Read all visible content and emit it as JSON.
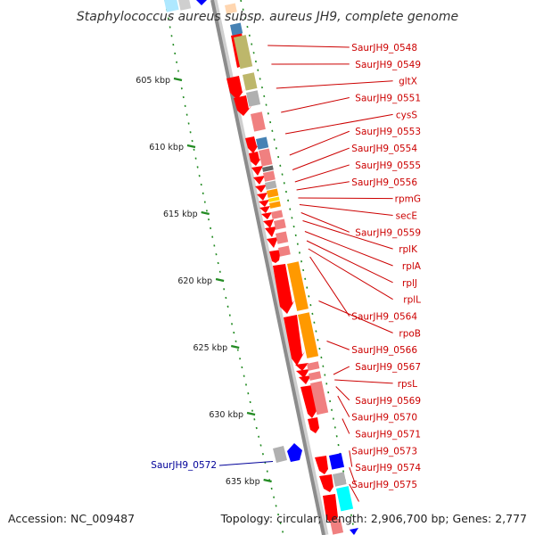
{
  "title": "Staphylococcus aureus subsp. aureus JH9, complete genome",
  "accession_text": "Accession: NC_009487",
  "summary_text": "Topology: circular; Length: 2,906,700 bp; Genes: 2,777",
  "ticks": [
    {
      "label": "605 kbp",
      "pos": 605
    },
    {
      "label": "610 kbp",
      "pos": 610
    },
    {
      "label": "615 kbp",
      "pos": 615
    },
    {
      "label": "620 kbp",
      "pos": 620
    },
    {
      "label": "625 kbp",
      "pos": 625
    },
    {
      "label": "630 kbp",
      "pos": 630
    },
    {
      "label": "635 kbp",
      "pos": 635
    }
  ],
  "colors": {
    "forward_label": "#cc0000",
    "reverse_label": "#000099",
    "cds_red": "#ff0000",
    "pink": "#f08080",
    "orange": "#ff9900",
    "olive": "#bdb76b",
    "steel": "#4682b4",
    "grey": "#b0b0b0",
    "blue": "#0000ff",
    "cyan": "#00ffff",
    "backbone": "#8c8c8c",
    "tick_green": "#228b22"
  },
  "labels": [
    {
      "text": "SaurJH9_0548",
      "strand": "forward",
      "pos": 602.4
    },
    {
      "text": "SaurJH9_0549",
      "strand": "forward",
      "pos": 603.8
    },
    {
      "text": "gltX",
      "strand": "forward",
      "pos": 605.6
    },
    {
      "text": "SaurJH9_0551",
      "strand": "forward",
      "pos": 607.4
    },
    {
      "text": "cysS",
      "strand": "forward",
      "pos": 609.0
    },
    {
      "text": "SaurJH9_0553",
      "strand": "forward",
      "pos": 610.6
    },
    {
      "text": "SaurJH9_0554",
      "strand": "forward",
      "pos": 611.7
    },
    {
      "text": "SaurJH9_0555",
      "strand": "forward",
      "pos": 612.6
    },
    {
      "text": "SaurJH9_0556",
      "strand": "forward",
      "pos": 613.2
    },
    {
      "text": "rpmG",
      "strand": "forward",
      "pos": 613.8
    },
    {
      "text": "secE",
      "strand": "forward",
      "pos": 614.3
    },
    {
      "text": "SaurJH9_0559",
      "strand": "forward",
      "pos": 614.9
    },
    {
      "text": "rplK",
      "strand": "forward",
      "pos": 615.5
    },
    {
      "text": "rplA",
      "strand": "forward",
      "pos": 616.3
    },
    {
      "text": "rplJ",
      "strand": "forward",
      "pos": 617.0
    },
    {
      "text": "rplL",
      "strand": "forward",
      "pos": 617.6
    },
    {
      "text": "SaurJH9_0564",
      "strand": "forward",
      "pos": 618.2
    },
    {
      "text": "rpoB",
      "strand": "forward",
      "pos": 621.5
    },
    {
      "text": "SaurJH9_0566",
      "strand": "forward",
      "pos": 624.5
    },
    {
      "text": "SaurJH9_0567",
      "strand": "forward",
      "pos": 627.0
    },
    {
      "text": "rpsL",
      "strand": "forward",
      "pos": 627.4
    },
    {
      "text": "SaurJH9_0569",
      "strand": "forward",
      "pos": 627.9
    },
    {
      "text": "SaurJH9_0570",
      "strand": "forward",
      "pos": 628.6
    },
    {
      "text": "SaurJH9_0571",
      "strand": "forward",
      "pos": 630.3
    },
    {
      "text": "SaurJH9_0573",
      "strand": "forward",
      "pos": 633.9
    },
    {
      "text": "SaurJH9_0574",
      "strand": "forward",
      "pos": 635.2
    },
    {
      "text": "SaurJH9_0575",
      "strand": "forward",
      "pos": 636.5
    },
    {
      "text": "SaurJH9_0572",
      "strand": "reverse",
      "pos": 633.9
    }
  ]
}
